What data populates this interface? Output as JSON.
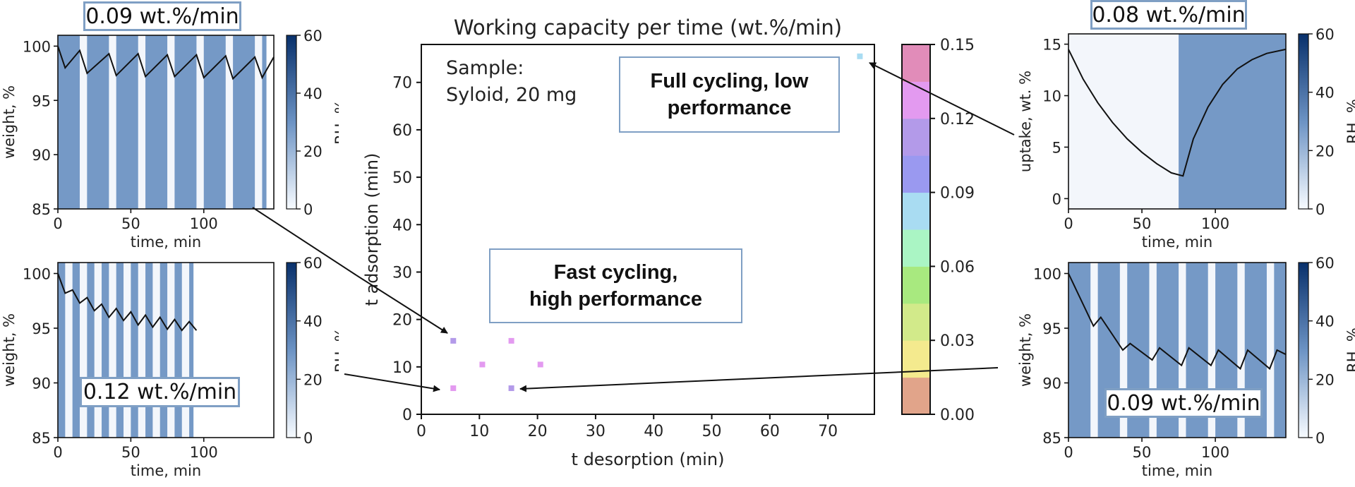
{
  "chart_data": {
    "main": {
      "type": "heatmap",
      "title": "Working capacity per time (wt.%/min)",
      "xlabel": "t desorption (min)",
      "ylabel": "t adsorption (min)",
      "xlim": [
        0,
        78
      ],
      "ylim": [
        0,
        78
      ],
      "xticks": [
        0,
        10,
        20,
        30,
        40,
        50,
        60,
        70
      ],
      "yticks": [
        0,
        10,
        20,
        30,
        40,
        50,
        60,
        70
      ],
      "points": [
        {
          "x": 5.5,
          "y": 5.5,
          "v": 0.13
        },
        {
          "x": 5.5,
          "y": 15.5,
          "v": 0.105
        },
        {
          "x": 10.5,
          "y": 10.5,
          "v": 0.13
        },
        {
          "x": 15.5,
          "y": 15.5,
          "v": 0.13
        },
        {
          "x": 15.5,
          "y": 5.5,
          "v": 0.105
        },
        {
          "x": 20.5,
          "y": 10.5,
          "v": 0.12
        },
        {
          "x": 75.5,
          "y": 75.5,
          "v": 0.08
        }
      ],
      "colorbar": {
        "range": [
          0,
          0.15
        ],
        "ticks": [
          "0.00",
          "0.03",
          "0.06",
          "0.09",
          "0.12",
          "0.15"
        ],
        "colors": [
          "#e1a48a",
          "#f4ea8e",
          "#d2ea8a",
          "#a8e97f",
          "#aaf5c4",
          "#a9dcf2",
          "#9a99f0",
          "#b39ae9",
          "#e39af0",
          "#e18cb9"
        ]
      },
      "sample_text": [
        "Sample:",
        "Syloid, 20 mg"
      ],
      "notes": [
        {
          "line1": "Full cycling, low",
          "line2": "performance"
        },
        {
          "line1": "Fast cycling,",
          "line2": "high performance"
        }
      ]
    },
    "panels": [
      {
        "id": "top-left",
        "type": "line",
        "xlabel": "time, min",
        "ylabel": "weight, %",
        "rh_label": "RH, %",
        "xlim": [
          0,
          148
        ],
        "ylim": [
          85,
          101
        ],
        "xticks": [
          0,
          50,
          100
        ],
        "yticks": [
          85,
          90,
          95,
          100
        ],
        "rh_ticks": [
          0,
          20,
          40,
          60
        ],
        "rate_label": "0.09 wt.%/min",
        "cycle": {
          "ads": 15,
          "des": 5,
          "end": 143
        },
        "series": [
          [
            0,
            100
          ],
          [
            5,
            98
          ],
          [
            15,
            99.6
          ],
          [
            20,
            97.5
          ],
          [
            35,
            99.3
          ],
          [
            40,
            97.3
          ],
          [
            55,
            99.3
          ],
          [
            60,
            97.2
          ],
          [
            75,
            99.2
          ],
          [
            80,
            97.2
          ],
          [
            95,
            99.2
          ],
          [
            100,
            97.1
          ],
          [
            115,
            99.1
          ],
          [
            120,
            97.0
          ],
          [
            135,
            99.0
          ],
          [
            140,
            97.1
          ],
          [
            148,
            99.0
          ]
        ]
      },
      {
        "id": "bottom-left",
        "type": "line",
        "xlabel": "time, min",
        "ylabel": "weight, %",
        "rh_label": "RH, %",
        "xlim": [
          0,
          148
        ],
        "ylim": [
          85,
          101
        ],
        "xticks": [
          0,
          50,
          100
        ],
        "yticks": [
          85,
          90,
          95,
          100
        ],
        "rh_ticks": [
          0,
          20,
          40,
          60
        ],
        "rate_label": "0.12 wt.%/min",
        "cycle": {
          "ads": 5,
          "des": 5,
          "end": 93
        },
        "series": [
          [
            0,
            100
          ],
          [
            5,
            98.2
          ],
          [
            10,
            98.5
          ],
          [
            15,
            97.3
          ],
          [
            20,
            97.8
          ],
          [
            25,
            96.6
          ],
          [
            30,
            97.2
          ],
          [
            35,
            96.0
          ],
          [
            40,
            96.8
          ],
          [
            45,
            95.7
          ],
          [
            50,
            96.5
          ],
          [
            55,
            95.3
          ],
          [
            60,
            96.2
          ],
          [
            65,
            95.1
          ],
          [
            70,
            96.0
          ],
          [
            75,
            94.9
          ],
          [
            80,
            95.8
          ],
          [
            85,
            94.8
          ],
          [
            90,
            95.6
          ],
          [
            95,
            94.8
          ]
        ]
      },
      {
        "id": "top-right",
        "type": "line",
        "xlabel": "time, min",
        "ylabel": "uptake, wt. %",
        "rh_label": "RH, %",
        "xlim": [
          0,
          148
        ],
        "ylim": [
          -1,
          16
        ],
        "xticks": [
          0,
          50,
          100
        ],
        "yticks": [
          0,
          5,
          10,
          15
        ],
        "rh_ticks": [
          0,
          20,
          40,
          60
        ],
        "rate_label": "0.08 wt.%/min",
        "cycle": {
          "ads": 75,
          "des": 75,
          "end": 148
        },
        "series": [
          [
            0,
            14.5
          ],
          [
            10,
            11.6
          ],
          [
            20,
            9.3
          ],
          [
            30,
            7.4
          ],
          [
            40,
            5.8
          ],
          [
            50,
            4.5
          ],
          [
            60,
            3.4
          ],
          [
            70,
            2.5
          ],
          [
            78,
            2.2
          ],
          [
            85,
            5.8
          ],
          [
            95,
            8.9
          ],
          [
            105,
            11.1
          ],
          [
            115,
            12.6
          ],
          [
            125,
            13.5
          ],
          [
            135,
            14.1
          ],
          [
            148,
            14.5
          ]
        ]
      },
      {
        "id": "bottom-right",
        "type": "line",
        "xlabel": "time, min",
        "ylabel": "weight, %",
        "rh_label": "RH, %",
        "xlim": [
          0,
          148
        ],
        "ylim": [
          85,
          101
        ],
        "xticks": [
          0,
          50,
          100
        ],
        "yticks": [
          85,
          90,
          95,
          100
        ],
        "rh_ticks": [
          0,
          20,
          40,
          60
        ],
        "rate_label": "0.09 wt.%/min",
        "cycle": {
          "ads": 15,
          "des": 5,
          "end": 148
        },
        "series": [
          [
            0,
            100
          ],
          [
            17,
            95.2
          ],
          [
            22,
            96.0
          ],
          [
            37,
            93.0
          ],
          [
            42,
            93.6
          ],
          [
            57,
            92.1
          ],
          [
            62,
            93.2
          ],
          [
            77,
            91.6
          ],
          [
            82,
            93.2
          ],
          [
            97,
            91.6
          ],
          [
            102,
            93.0
          ],
          [
            117,
            91.3
          ],
          [
            122,
            93.0
          ],
          [
            137,
            91.3
          ],
          [
            142,
            93.0
          ],
          [
            148,
            92.6
          ]
        ]
      }
    ]
  }
}
